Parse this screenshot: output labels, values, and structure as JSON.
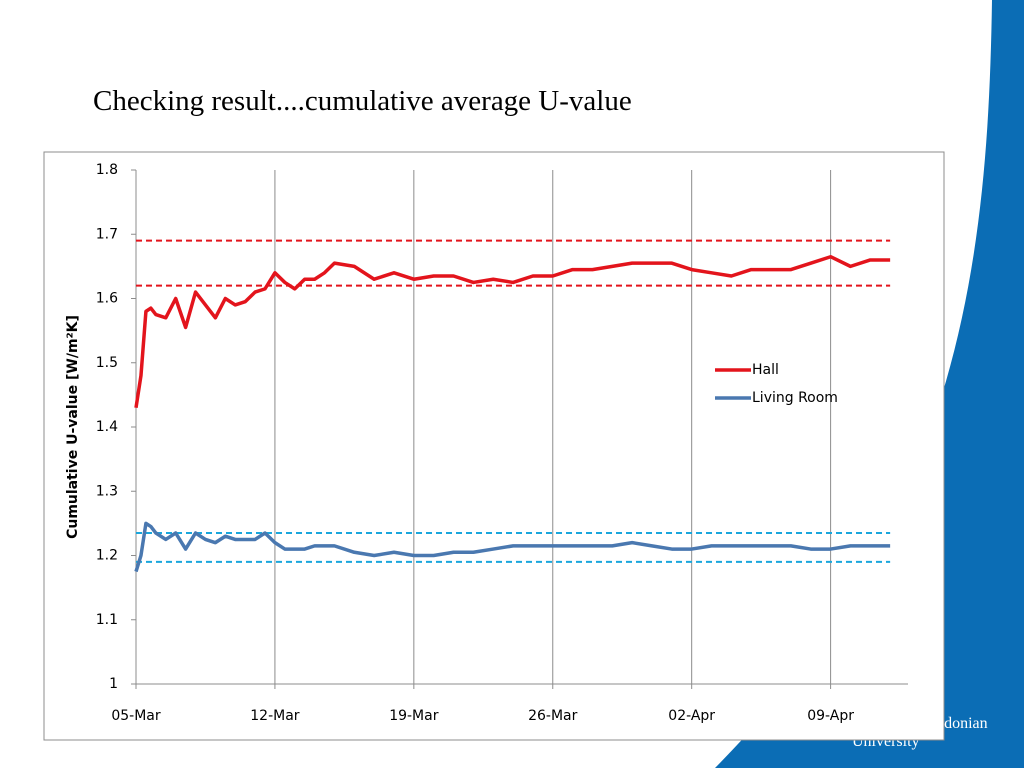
{
  "slide_title": "Checking result....cumulative average U-value",
  "logo": {
    "line1": "edonian",
    "line2": "University"
  },
  "chart_data": {
    "type": "line",
    "y_label": "Cumulative U-value [W/m²K]",
    "x": [
      0,
      0.25,
      0.5,
      0.75,
      1,
      1.5,
      2,
      2.5,
      3,
      3.5,
      4,
      4.5,
      5,
      5.5,
      6,
      6.5,
      7,
      7.5,
      8,
      8.5,
      9,
      9.5,
      10,
      11,
      12,
      13,
      14,
      15,
      16,
      17,
      18,
      19,
      20,
      21,
      22,
      23,
      24,
      25,
      26,
      27,
      28,
      29,
      30,
      31,
      32,
      33,
      34,
      35,
      36,
      37,
      38
    ],
    "series": [
      {
        "name": "Hall",
        "color": "#e3141c",
        "values": [
          1.43,
          1.48,
          1.58,
          1.585,
          1.575,
          1.57,
          1.6,
          1.555,
          1.61,
          1.59,
          1.57,
          1.6,
          1.59,
          1.595,
          1.61,
          1.615,
          1.64,
          1.625,
          1.615,
          1.63,
          1.63,
          1.64,
          1.655,
          1.65,
          1.63,
          1.64,
          1.63,
          1.635,
          1.635,
          1.625,
          1.63,
          1.625,
          1.635,
          1.635,
          1.645,
          1.645,
          1.65,
          1.655,
          1.655,
          1.655,
          1.645,
          1.64,
          1.635,
          1.645,
          1.645,
          1.645,
          1.655,
          1.665,
          1.65,
          1.66,
          1.66
        ]
      },
      {
        "name": "Living Room",
        "color": "#4a78b0",
        "values": [
          1.175,
          1.2,
          1.25,
          1.245,
          1.235,
          1.225,
          1.235,
          1.21,
          1.235,
          1.225,
          1.22,
          1.23,
          1.225,
          1.225,
          1.225,
          1.235,
          1.22,
          1.21,
          1.21,
          1.21,
          1.215,
          1.215,
          1.215,
          1.205,
          1.2,
          1.205,
          1.2,
          1.2,
          1.205,
          1.205,
          1.21,
          1.215,
          1.215,
          1.215,
          1.215,
          1.215,
          1.215,
          1.22,
          1.215,
          1.21,
          1.21,
          1.215,
          1.215,
          1.215,
          1.215,
          1.215,
          1.21,
          1.21,
          1.215,
          1.215,
          1.215
        ]
      }
    ],
    "reference_lines": [
      {
        "value": 1.69,
        "color": "#e3141c"
      },
      {
        "value": 1.62,
        "color": "#e3141c"
      },
      {
        "value": 1.235,
        "color": "#1aa6dc"
      },
      {
        "value": 1.19,
        "color": "#1aa6dc"
      }
    ],
    "xlim": [
      0,
      38.9
    ],
    "xticks": [
      {
        "value": 0,
        "label": "05-Mar"
      },
      {
        "value": 7,
        "label": "12-Mar"
      },
      {
        "value": 14,
        "label": "19-Mar"
      },
      {
        "value": 21,
        "label": "26-Mar"
      },
      {
        "value": 28,
        "label": "02-Apr"
      },
      {
        "value": 35,
        "label": "09-Apr"
      }
    ],
    "ylim": [
      1,
      1.8
    ],
    "yticks": [
      1,
      1.1,
      1.2,
      1.3,
      1.4,
      1.5,
      1.6,
      1.7,
      1.8
    ],
    "grid": "x",
    "legend": "right"
  }
}
